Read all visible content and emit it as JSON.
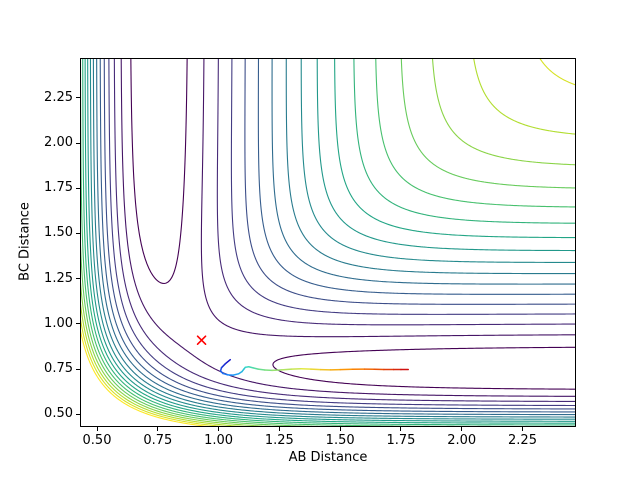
{
  "figure": {
    "background": "#ffffff"
  },
  "chart_data": {
    "type": "contour",
    "title": "",
    "xlabel": "AB Distance",
    "ylabel": "BC Distance",
    "xlim": [
      0.43,
      2.47
    ],
    "ylim": [
      0.43,
      2.47
    ],
    "grid": false,
    "legend": "none",
    "xticks": {
      "values": [
        0.5,
        0.75,
        1.0,
        1.25,
        1.5,
        1.75,
        2.0,
        2.25
      ],
      "labels": [
        "0.50",
        "0.75",
        "1.00",
        "1.25",
        "1.50",
        "1.75",
        "2.00",
        "2.25"
      ]
    },
    "yticks": {
      "values": [
        0.5,
        0.75,
        1.0,
        1.25,
        1.5,
        1.75,
        2.0,
        2.25
      ],
      "labels": [
        "0.50",
        "0.75",
        "1.00",
        "1.25",
        "1.50",
        "1.75",
        "2.00",
        "2.25"
      ]
    },
    "colormap": "viridis",
    "contour_levels": {
      "min": -4.5,
      "max": -0.25,
      "step": 0.25,
      "count": 18
    },
    "surface": {
      "model": "collinear LEPS potential A-B-C (r_AC = r_AB + r_BC)",
      "D_eV": 4.7466,
      "beta_per_angstrom": 1.942,
      "r_eq_angstrom": 0.7416,
      "sato": 0.1386
    },
    "saddle_marker": {
      "x": 0.93,
      "y": 0.91,
      "marker": "x",
      "color": "#ff0000"
    },
    "trajectory": {
      "colormap": "jet",
      "points": [
        [
          1.048,
          0.802
        ],
        [
          1.028,
          0.78
        ],
        [
          1.012,
          0.758
        ],
        [
          1.008,
          0.74
        ],
        [
          1.018,
          0.726
        ],
        [
          1.038,
          0.718
        ],
        [
          1.06,
          0.717
        ],
        [
          1.082,
          0.724
        ],
        [
          1.096,
          0.736
        ],
        [
          1.104,
          0.75
        ],
        [
          1.11,
          0.76
        ],
        [
          1.124,
          0.763
        ],
        [
          1.142,
          0.757
        ],
        [
          1.163,
          0.75
        ],
        [
          1.19,
          0.745
        ],
        [
          1.22,
          0.743
        ],
        [
          1.26,
          0.746
        ],
        [
          1.3,
          0.75
        ],
        [
          1.34,
          0.752
        ],
        [
          1.38,
          0.75
        ],
        [
          1.42,
          0.747
        ],
        [
          1.46,
          0.746
        ],
        [
          1.5,
          0.747
        ],
        [
          1.55,
          0.749
        ],
        [
          1.6,
          0.75
        ],
        [
          1.64,
          0.749
        ],
        [
          1.68,
          0.748
        ],
        [
          1.72,
          0.748
        ],
        [
          1.75,
          0.748
        ],
        [
          1.78,
          0.748
        ]
      ]
    }
  },
  "colors": {
    "axis": "#000000",
    "viridis_stops": [
      [
        0.0,
        "#440154"
      ],
      [
        0.1,
        "#482475"
      ],
      [
        0.2,
        "#414487"
      ],
      [
        0.3,
        "#355f8d"
      ],
      [
        0.4,
        "#2a788e"
      ],
      [
        0.5,
        "#21918c"
      ],
      [
        0.6,
        "#22a884"
      ],
      [
        0.7,
        "#44bf70"
      ],
      [
        0.8,
        "#7ad151"
      ],
      [
        0.9,
        "#bddf26"
      ],
      [
        1.0,
        "#fde725"
      ]
    ],
    "jet_stops": [
      [
        0.0,
        "#1515c8"
      ],
      [
        0.18,
        "#1e90ff"
      ],
      [
        0.35,
        "#30d5c8"
      ],
      [
        0.5,
        "#7fe07f"
      ],
      [
        0.65,
        "#e8e840"
      ],
      [
        0.8,
        "#ff8c00"
      ],
      [
        1.0,
        "#d01010"
      ]
    ]
  }
}
